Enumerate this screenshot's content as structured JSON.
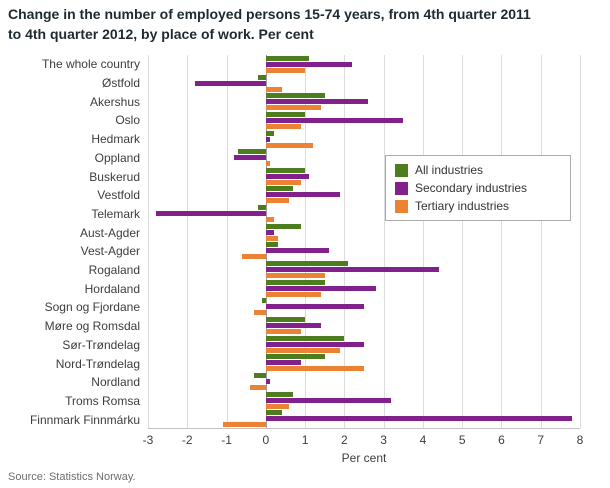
{
  "title": {
    "line1": "Change in the number of employed persons 15-74 years, from 4th quarter 2011",
    "line2": "to 4th quarter 2012, by place of work. Per cent"
  },
  "source": "Source: Statistics Norway.",
  "colors": {
    "all_industries": "#4e7d20",
    "secondary_industries": "#82218b",
    "tertiary_industries": "#ec8234",
    "gridline": "#dcdcdc",
    "zero_line": "#9b9b9b"
  },
  "chart_data": {
    "type": "bar",
    "orientation": "horizontal",
    "title": "Change in the number of employed persons 15-74 years, from 4th quarter 2011 to 4th quarter 2012, by place of work. Per cent",
    "xlabel": "Per cent",
    "ylabel": "",
    "xlim": [
      -3,
      8
    ],
    "xticks": [
      -3,
      -2,
      -1,
      0,
      1,
      2,
      3,
      4,
      5,
      6,
      7,
      8
    ],
    "grid": true,
    "legend_position": "middle-right",
    "categories": [
      "The whole country",
      "Østfold",
      "Akershus",
      "Oslo",
      "Hedmark",
      "Oppland",
      "Buskerud",
      "Vestfold",
      "Telemark",
      "Aust-Agder",
      "Vest-Agder",
      "Rogaland",
      "Hordaland",
      "Sogn og Fjordane",
      "Møre og Romsdal",
      "Sør-Trøndelag",
      "Nord-Trøndelag",
      "Nordland",
      "Troms Romsa",
      "Finnmark Finnmárku"
    ],
    "series": [
      {
        "name": "All industries",
        "color": "#4e7d20",
        "values": [
          1.1,
          -0.2,
          1.5,
          1.0,
          0.2,
          -0.7,
          1.0,
          0.7,
          -0.2,
          0.9,
          0.3,
          2.1,
          1.5,
          -0.1,
          1.0,
          2.0,
          1.5,
          -0.3,
          0.7,
          0.4
        ]
      },
      {
        "name": "Secondary industries",
        "color": "#82218b",
        "values": [
          2.2,
          -1.8,
          2.6,
          3.5,
          0.1,
          -0.8,
          1.1,
          1.9,
          -2.8,
          0.2,
          1.6,
          4.4,
          2.8,
          2.5,
          1.4,
          2.5,
          0.9,
          0.1,
          3.2,
          7.8
        ]
      },
      {
        "name": "Tertiary industries",
        "color": "#ec8234",
        "values": [
          1.0,
          0.4,
          1.4,
          0.9,
          1.2,
          0.1,
          0.9,
          0.6,
          0.2,
          0.3,
          -0.6,
          1.5,
          1.4,
          -0.3,
          0.9,
          1.9,
          2.5,
          -0.4,
          0.6,
          -1.1
        ]
      }
    ]
  }
}
